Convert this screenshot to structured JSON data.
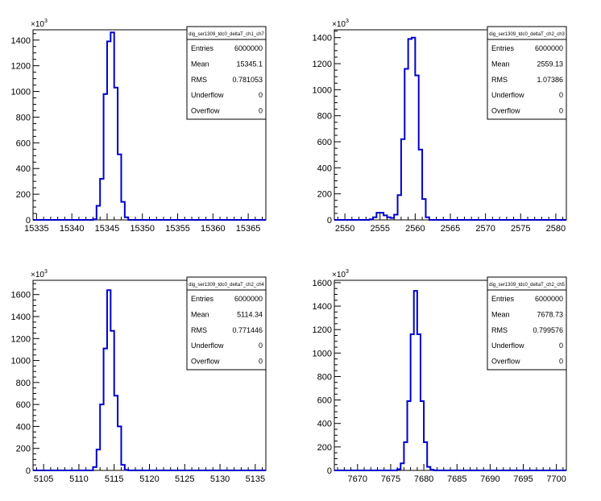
{
  "exponent_base": "×10",
  "exponent_power": "3",
  "stats_labels": {
    "entries": "Entries",
    "mean": "Mean",
    "rms": "RMS",
    "underflow": "Underflow",
    "overflow": "Overflow"
  },
  "colors": {
    "histogram": "#0000cc",
    "axis": "#000000",
    "background": "#ffffff"
  },
  "chart_data": [
    {
      "type": "bar",
      "subtype": "step-histogram",
      "name": "dig_ser1309_tdc0_deltaT_ch1_ch7",
      "stats": {
        "entries": "6000000",
        "mean": "15345.1",
        "rms": "0.781053",
        "underflow": "0",
        "overflow": "0"
      },
      "xlim": [
        15334.5,
        15367.5
      ],
      "ylim": [
        0,
        1480
      ],
      "xticks": [
        15335,
        15340,
        15345,
        15350,
        15355,
        15360,
        15365
      ],
      "yticks": [
        0,
        200,
        400,
        600,
        800,
        1000,
        1200,
        1400
      ],
      "bin_width": 0.5,
      "bins": [
        [
          15343.0,
          5
        ],
        [
          15343.5,
          110
        ],
        [
          15344.0,
          320
        ],
        [
          15344.5,
          980
        ],
        [
          15345.0,
          1390
        ],
        [
          15345.5,
          1460
        ],
        [
          15346.0,
          1030
        ],
        [
          15346.5,
          510
        ],
        [
          15347.0,
          140
        ],
        [
          15347.5,
          20
        ]
      ]
    },
    {
      "type": "bar",
      "subtype": "step-histogram",
      "name": "dig_ser1309_tdc0_deltaT_ch2_ch3",
      "stats": {
        "entries": "6000000",
        "mean": "2559.13",
        "rms": "1.07386",
        "underflow": "0",
        "overflow": "0"
      },
      "xlim": [
        2548.5,
        2581.5
      ],
      "ylim": [
        0,
        1460
      ],
      "xticks": [
        2550,
        2555,
        2560,
        2565,
        2570,
        2575,
        2580
      ],
      "yticks": [
        0,
        200,
        400,
        600,
        800,
        1000,
        1200,
        1400
      ],
      "bin_width": 0.5,
      "bins": [
        [
          2553.5,
          5
        ],
        [
          2554.0,
          20
        ],
        [
          2554.5,
          55
        ],
        [
          2555.0,
          55
        ],
        [
          2555.5,
          35
        ],
        [
          2556.0,
          20
        ],
        [
          2556.5,
          15
        ],
        [
          2557.0,
          40
        ],
        [
          2557.5,
          190
        ],
        [
          2558.0,
          620
        ],
        [
          2558.5,
          1160
        ],
        [
          2559.0,
          1390
        ],
        [
          2559.5,
          1400
        ],
        [
          2560.0,
          1110
        ],
        [
          2560.5,
          540
        ],
        [
          2561.0,
          160
        ],
        [
          2561.5,
          20
        ]
      ]
    },
    {
      "type": "bar",
      "subtype": "step-histogram",
      "name": "dig_ser1309_tdc0_deltaT_ch2_ch4",
      "stats": {
        "entries": "6000000",
        "mean": "5114.34",
        "rms": "0.771446",
        "underflow": "0",
        "overflow": "0"
      },
      "xlim": [
        5103.5,
        5136.5
      ],
      "ylim": [
        0,
        1730
      ],
      "xticks": [
        5105,
        5110,
        5115,
        5120,
        5125,
        5130,
        5135
      ],
      "yticks": [
        0,
        200,
        400,
        600,
        800,
        1000,
        1200,
        1400,
        1600
      ],
      "bin_width": 0.5,
      "bins": [
        [
          5112.0,
          30
        ],
        [
          5112.5,
          190
        ],
        [
          5113.0,
          600
        ],
        [
          5113.5,
          1110
        ],
        [
          5114.0,
          1640
        ],
        [
          5114.5,
          1270
        ],
        [
          5115.0,
          680
        ],
        [
          5115.5,
          400
        ],
        [
          5116.0,
          50
        ],
        [
          5116.5,
          5
        ]
      ]
    },
    {
      "type": "bar",
      "subtype": "step-histogram",
      "name": "dig_ser1309_tdc0_deltaT_ch2_ch5",
      "stats": {
        "entries": "6000000",
        "mean": "7678.73",
        "rms": "0.799576",
        "underflow": "0",
        "overflow": "0"
      },
      "xlim": [
        7666.5,
        7701.5
      ],
      "ylim": [
        0,
        1620
      ],
      "xticks": [
        7670,
        7675,
        7680,
        7685,
        7690,
        7695,
        7700
      ],
      "yticks": [
        0,
        200,
        400,
        600,
        800,
        1000,
        1200,
        1400,
        1600
      ],
      "bin_width": 0.5,
      "bins": [
        [
          7676.0,
          10
        ],
        [
          7676.5,
          60
        ],
        [
          7677.0,
          240
        ],
        [
          7677.5,
          590
        ],
        [
          7678.0,
          1160
        ],
        [
          7678.5,
          1530
        ],
        [
          7679.0,
          1160
        ],
        [
          7679.5,
          590
        ],
        [
          7680.0,
          240
        ],
        [
          7680.5,
          30
        ],
        [
          7681.0,
          5
        ]
      ]
    }
  ]
}
